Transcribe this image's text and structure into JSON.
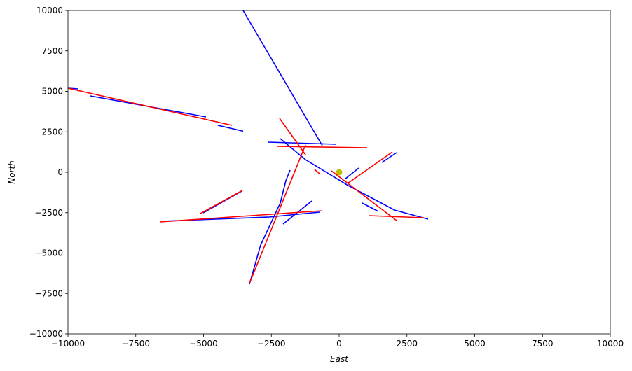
{
  "chart_data": {
    "type": "line",
    "x_label": "East",
    "y_label": "North",
    "xlim": [
      -10000,
      10000
    ],
    "ylim": [
      -10000,
      10000
    ],
    "xticks": [
      {
        "value": -10000,
        "label": "−10000"
      },
      {
        "value": -7500,
        "label": "−7500"
      },
      {
        "value": -5000,
        "label": "−5000"
      },
      {
        "value": -2500,
        "label": "−2500"
      },
      0,
      2500,
      5000,
      7500,
      10000
    ],
    "yticks": [
      {
        "value": -10000,
        "label": "−10000"
      },
      {
        "value": -7500,
        "label": "−7500"
      },
      {
        "value": -5000,
        "label": "−5000"
      },
      {
        "value": -2500,
        "label": "−2500"
      },
      0,
      2500,
      5000,
      7500,
      10000
    ],
    "grid": false,
    "series": [
      {
        "color": "#0000ff",
        "type": "line",
        "x": [
          -10000,
          -9612,
          null,
          -9173,
          -4910,
          null,
          -4470,
          -3540,
          null,
          -3540,
          -620,
          null,
          -2610,
          -103,
          null,
          -2171,
          -1240,
          336,
          2041,
          3282,
          null,
          -3307,
          -2894,
          -2171,
          -1964,
          -1809,
          null,
          -6512,
          -2584,
          -723,
          null,
          -5013,
          -3592,
          null,
          -2067,
          -1008,
          null,
          853,
          1447,
          null,
          1576,
          2119,
          null,
          207,
          724
        ],
        "y": [
          5195,
          5152,
          null,
          4719,
          3420,
          null,
          2900,
          2540,
          null,
          10000,
          1645,
          null,
          1861,
          1731,
          null,
          2078,
          779,
          -822,
          -2338,
          -2900,
          null,
          -6926,
          -4502,
          -1905,
          -519,
          130,
          null,
          -3030,
          -2770,
          -2467,
          null,
          -2511,
          -1169,
          null,
          -3203,
          -1775,
          null,
          -1905,
          -2424,
          null,
          606,
          1212,
          null,
          -433,
          260
        ]
      },
      {
        "color": "#ff0000",
        "type": "line",
        "x": [
          -10000,
          -3953,
          null,
          -2196,
          -1240,
          null,
          -2300,
          1034,
          null,
          310,
          1964,
          null,
          -904,
          -723,
          null,
          -284,
          2119,
          null,
          1085,
          3127,
          null,
          -5116,
          -3566,
          null,
          -6615,
          -620,
          null,
          -3307,
          -1240
        ],
        "y": [
          5195,
          2900,
          null,
          3333,
          1082,
          null,
          1600,
          1515,
          null,
          -693,
          1255,
          null,
          173,
          -87,
          null,
          87,
          -2987,
          null,
          -2684,
          -2814,
          null,
          -2554,
          -1126,
          null,
          -3074,
          -2381,
          null,
          -6883,
          1688
        ]
      },
      {
        "color": "#bfbf00",
        "type": "scatter",
        "x": [
          0
        ],
        "y": [
          0
        ]
      }
    ]
  }
}
